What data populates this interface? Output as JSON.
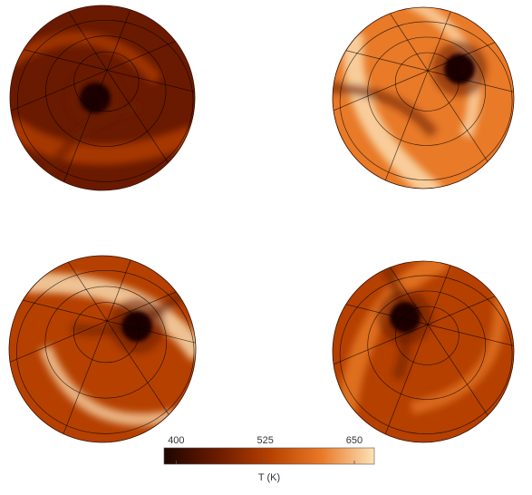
{
  "chart_data": {
    "type": "heatmap",
    "colorbar_label": "T (K)",
    "clim": [
      383,
      678
    ],
    "cticks": [
      400,
      525,
      650
    ],
    "colors": [
      "#1e0500",
      "#6a1a00",
      "#b54000",
      "#e87a28",
      "#fde2b8"
    ]
  }
}
